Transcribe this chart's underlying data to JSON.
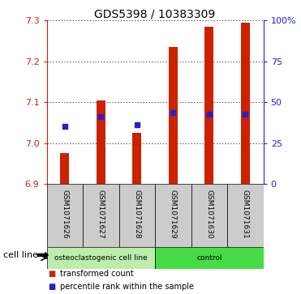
{
  "title": "GDS5398 / 10383309",
  "samples": [
    "GSM1071626",
    "GSM1071627",
    "GSM1071628",
    "GSM1071629",
    "GSM1071630",
    "GSM1071631"
  ],
  "bar_bottoms": [
    6.9,
    6.9,
    6.9,
    6.9,
    6.9,
    6.9
  ],
  "bar_tops": [
    6.975,
    7.105,
    7.025,
    7.235,
    7.285,
    7.295
  ],
  "blue_values": [
    7.04,
    7.065,
    7.045,
    7.075,
    7.07,
    7.07
  ],
  "ylim": [
    6.9,
    7.3
  ],
  "yticks_left": [
    6.9,
    7.0,
    7.1,
    7.2,
    7.3
  ],
  "yticks_right": [
    0,
    25,
    50,
    75,
    100
  ],
  "bar_color": "#cc2200",
  "blue_color": "#2222cc",
  "cell_line_groups": [
    {
      "label": "osteoclastogenic cell line",
      "start": 0,
      "end": 3,
      "color": "#bbeeaa"
    },
    {
      "label": "control",
      "start": 3,
      "end": 6,
      "color": "#44dd44"
    }
  ],
  "legend_items": [
    {
      "color": "#cc2200",
      "label": "transformed count"
    },
    {
      "color": "#2222cc",
      "label": "percentile rank within the sample"
    }
  ],
  "cell_line_label": "cell line",
  "bg_color": "#ffffff",
  "sample_box_color": "#cccccc",
  "bar_width": 0.25
}
